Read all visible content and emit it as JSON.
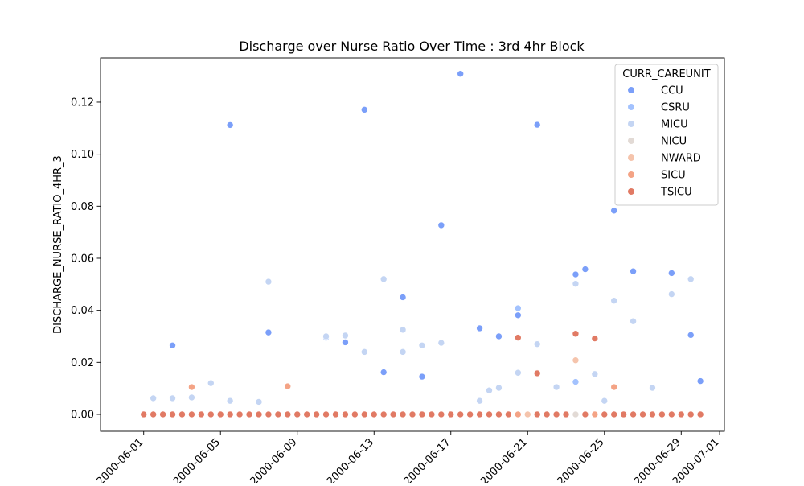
{
  "chart_data": {
    "type": "scatter",
    "title": "Discharge over Nurse Ratio Over Time : 3rd 4hr Block",
    "xlabel": "",
    "ylabel": "DISCHARGE_NURSE_RATIO_4HR_3",
    "xlim": [
      "2000-05-29T18:00",
      "2000-07-01T06:00"
    ],
    "ylim": [
      -0.0065,
      0.137
    ],
    "x_ticks": [
      "2000-06-01",
      "2000-06-05",
      "2000-06-09",
      "2000-06-13",
      "2000-06-17",
      "2000-06-21",
      "2000-06-25",
      "2000-06-29",
      "2000-07-01"
    ],
    "y_ticks": [
      0.0,
      0.02,
      0.04,
      0.06,
      0.08,
      0.1,
      0.12
    ],
    "y_tick_labels": [
      "0.00",
      "0.02",
      "0.04",
      "0.06",
      "0.08",
      "0.10",
      "0.12"
    ],
    "grid": false,
    "legend": {
      "title": "CURR_CAREUNIT",
      "placement": "top-right"
    },
    "series": [
      {
        "name": "CCU",
        "color": "#7b9ff9",
        "points": [
          [
            "2000-06-02T12:00",
            0.0265
          ],
          [
            "2000-06-05T12:00",
            0.1112
          ],
          [
            "2000-06-07T12:00",
            0.0315
          ],
          [
            "2000-06-11T12:00",
            0.0277
          ],
          [
            "2000-06-12T12:00",
            0.1171
          ],
          [
            "2000-06-13T12:00",
            0.0162
          ],
          [
            "2000-06-14T12:00",
            0.045
          ],
          [
            "2000-06-15T12:00",
            0.0145
          ],
          [
            "2000-06-16T12:00",
            0.0727
          ],
          [
            "2000-06-17T12:00",
            0.1309
          ],
          [
            "2000-06-18T12:00",
            0.0331
          ],
          [
            "2000-06-19T12:00",
            0.03
          ],
          [
            "2000-06-20T12:00",
            0.0381
          ],
          [
            "2000-06-21T12:00",
            0.1113
          ],
          [
            "2000-06-23T12:00",
            0.0538
          ],
          [
            "2000-06-24T00:00",
            0.0558
          ],
          [
            "2000-06-25T12:00",
            0.0783
          ],
          [
            "2000-06-26T12:00",
            0.055
          ],
          [
            "2000-06-28T12:00",
            0.0543
          ],
          [
            "2000-06-29T12:00",
            0.0305
          ],
          [
            "2000-06-30T00:00",
            0.0128
          ]
        ]
      },
      {
        "name": "CSRU",
        "color": "#a3c2fe",
        "points": [
          [
            "2000-06-10T12:00",
            0.0295
          ],
          [
            "2000-06-23T12:00",
            0.0125
          ],
          [
            "2000-06-20T12:00",
            0.0408
          ]
        ]
      },
      {
        "name": "MICU",
        "color": "#c4d5f3",
        "points": [
          [
            "2000-06-01T12:00",
            0.0062
          ],
          [
            "2000-06-02T12:00",
            0.0062
          ],
          [
            "2000-06-03T12:00",
            0.0065
          ],
          [
            "2000-06-04T12:00",
            0.012
          ],
          [
            "2000-06-05T12:00",
            0.0052
          ],
          [
            "2000-06-07T00:00",
            0.0048
          ],
          [
            "2000-06-07T12:00",
            0.051
          ],
          [
            "2000-06-10T12:00",
            0.03
          ],
          [
            "2000-06-11T12:00",
            0.0303
          ],
          [
            "2000-06-12T12:00",
            0.024
          ],
          [
            "2000-06-13T12:00",
            0.052
          ],
          [
            "2000-06-14T12:00",
            0.0325
          ],
          [
            "2000-06-14T12:00",
            0.024
          ],
          [
            "2000-06-15T12:00",
            0.0265
          ],
          [
            "2000-06-16T12:00",
            0.0275
          ],
          [
            "2000-06-18T12:00",
            0.0052
          ],
          [
            "2000-06-19T00:00",
            0.0092
          ],
          [
            "2000-06-19T12:00",
            0.0102
          ],
          [
            "2000-06-20T12:00",
            0.016
          ],
          [
            "2000-06-21T12:00",
            0.027
          ],
          [
            "2000-06-22T12:00",
            0.0105
          ],
          [
            "2000-06-23T12:00",
            0.0502
          ],
          [
            "2000-06-24T12:00",
            0.0155
          ],
          [
            "2000-06-25T00:00",
            0.0052
          ],
          [
            "2000-06-25T12:00",
            0.0437
          ],
          [
            "2000-06-26T12:00",
            0.0358
          ],
          [
            "2000-06-27T12:00",
            0.0102
          ],
          [
            "2000-06-28T12:00",
            0.0462
          ],
          [
            "2000-06-29T12:00",
            0.052
          ]
        ]
      },
      {
        "name": "NICU",
        "color": "#e2dad5",
        "points": [
          [
            "2000-06-23T12:00",
            0.0
          ]
        ]
      },
      {
        "name": "NWARD",
        "color": "#f5c4ac",
        "points": [
          [
            "2000-06-21T00:00",
            0.0
          ],
          [
            "2000-06-23T12:00",
            0.0208
          ]
        ]
      },
      {
        "name": "SICU",
        "color": "#f4a385",
        "points": [
          [
            "2000-06-03T12:00",
            0.0105
          ],
          [
            "2000-06-08T12:00",
            0.0108
          ],
          [
            "2000-06-25T12:00",
            0.0105
          ],
          [
            "2000-06-20T12:00",
            0.0
          ],
          [
            "2000-06-24T12:00",
            0.0
          ]
        ]
      },
      {
        "name": "TSICU",
        "color": "#e17a64",
        "points": [
          [
            "2000-06-20T12:00",
            0.0295
          ],
          [
            "2000-06-21T12:00",
            0.0158
          ],
          [
            "2000-06-23T12:00",
            0.031
          ],
          [
            "2000-06-24T12:00",
            0.0292
          ],
          [
            "2000-06-01T00:00",
            0.0
          ],
          [
            "2000-06-01T12:00",
            0.0
          ],
          [
            "2000-06-02T00:00",
            0.0
          ],
          [
            "2000-06-02T12:00",
            0.0
          ],
          [
            "2000-06-03T00:00",
            0.0
          ],
          [
            "2000-06-03T12:00",
            0.0
          ],
          [
            "2000-06-04T00:00",
            0.0
          ],
          [
            "2000-06-04T12:00",
            0.0
          ],
          [
            "2000-06-05T00:00",
            0.0
          ],
          [
            "2000-06-05T12:00",
            0.0
          ],
          [
            "2000-06-06T00:00",
            0.0
          ],
          [
            "2000-06-06T12:00",
            0.0
          ],
          [
            "2000-06-07T00:00",
            0.0
          ],
          [
            "2000-06-07T12:00",
            0.0
          ],
          [
            "2000-06-08T00:00",
            0.0
          ],
          [
            "2000-06-08T12:00",
            0.0
          ],
          [
            "2000-06-09T00:00",
            0.0
          ],
          [
            "2000-06-09T12:00",
            0.0
          ],
          [
            "2000-06-10T00:00",
            0.0
          ],
          [
            "2000-06-10T12:00",
            0.0
          ],
          [
            "2000-06-11T00:00",
            0.0
          ],
          [
            "2000-06-11T12:00",
            0.0
          ],
          [
            "2000-06-12T00:00",
            0.0
          ],
          [
            "2000-06-12T12:00",
            0.0
          ],
          [
            "2000-06-13T00:00",
            0.0
          ],
          [
            "2000-06-13T12:00",
            0.0
          ],
          [
            "2000-06-14T00:00",
            0.0
          ],
          [
            "2000-06-14T12:00",
            0.0
          ],
          [
            "2000-06-15T00:00",
            0.0
          ],
          [
            "2000-06-15T12:00",
            0.0
          ],
          [
            "2000-06-16T00:00",
            0.0
          ],
          [
            "2000-06-16T12:00",
            0.0
          ],
          [
            "2000-06-17T00:00",
            0.0
          ],
          [
            "2000-06-17T12:00",
            0.0
          ],
          [
            "2000-06-18T00:00",
            0.0
          ],
          [
            "2000-06-18T12:00",
            0.0
          ],
          [
            "2000-06-19T00:00",
            0.0
          ],
          [
            "2000-06-19T12:00",
            0.0
          ],
          [
            "2000-06-20T00:00",
            0.0
          ],
          [
            "2000-06-21T12:00",
            0.0
          ],
          [
            "2000-06-22T00:00",
            0.0
          ],
          [
            "2000-06-22T12:00",
            0.0
          ],
          [
            "2000-06-23T00:00",
            0.0
          ],
          [
            "2000-06-24T00:00",
            0.0
          ],
          [
            "2000-06-25T00:00",
            0.0
          ],
          [
            "2000-06-25T12:00",
            0.0
          ],
          [
            "2000-06-26T00:00",
            0.0
          ],
          [
            "2000-06-26T12:00",
            0.0
          ],
          [
            "2000-06-27T00:00",
            0.0
          ],
          [
            "2000-06-27T12:00",
            0.0
          ],
          [
            "2000-06-28T00:00",
            0.0
          ],
          [
            "2000-06-28T12:00",
            0.0
          ],
          [
            "2000-06-29T00:00",
            0.0
          ],
          [
            "2000-06-29T12:00",
            0.0
          ],
          [
            "2000-06-30T00:00",
            0.0
          ]
        ]
      }
    ]
  }
}
